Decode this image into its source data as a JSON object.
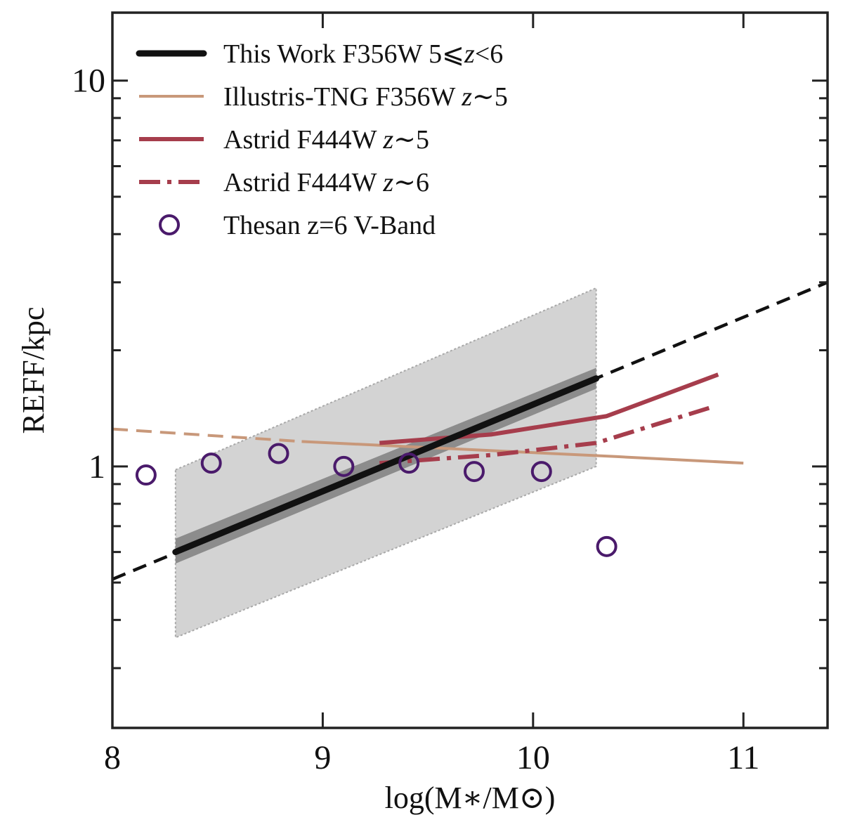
{
  "chart_data": {
    "type": "line",
    "title": "",
    "xlabel": "log(M∗/M⊙)",
    "ylabel": "REFF/kpc",
    "xlim": [
      8.0,
      11.4
    ],
    "ylim": [
      0.21,
      15.0
    ],
    "yscale": "log",
    "grid": false,
    "legend_position": "top-left",
    "xticks": [
      {
        "value": 8,
        "label": "8"
      },
      {
        "value": 9,
        "label": "9"
      },
      {
        "value": 10,
        "label": "10"
      },
      {
        "value": 11,
        "label": "11"
      }
    ],
    "yticks": [
      {
        "value": 1,
        "label": "1"
      },
      {
        "value": 10,
        "label": "10"
      }
    ],
    "band_outer": {
      "x": [
        8.3,
        10.3
      ],
      "lower": [
        0.36,
        1.0
      ],
      "upper": [
        0.98,
        2.9
      ]
    },
    "band_inner": {
      "x": [
        8.3,
        10.3
      ],
      "lower": [
        0.56,
        1.59
      ],
      "upper": [
        0.65,
        1.8
      ]
    },
    "series": [
      {
        "name": "This Work F356W 5⩽z<6",
        "legend_text": "This Work F356W 5⩽",
        "legend_italic": "z",
        "legend_tail": "<6",
        "color": "#111111",
        "solid": {
          "x": [
            8.3,
            10.3
          ],
          "y": [
            0.6,
            1.69
          ]
        },
        "extrapolation": {
          "x": [
            8.0,
            11.4
          ],
          "y": [
            0.51,
            3.0
          ]
        }
      },
      {
        "name": "Illustris-TNG F356W z∼5",
        "legend_text": "Illustris-TNG F356W ",
        "legend_italic": "z",
        "legend_tail": "∼5",
        "color": "#c8987a",
        "x": [
          8.9,
          10.4,
          11.0
        ],
        "y": [
          1.16,
          1.06,
          1.02
        ],
        "dashed": {
          "x": [
            8.0,
            8.9
          ],
          "y": [
            1.25,
            1.16
          ]
        }
      },
      {
        "name": "Astrid F444W z∼5",
        "legend_text": "Astrid F444W ",
        "legend_italic": "z",
        "legend_tail": "∼5",
        "color": "#a63d4c",
        "x": [
          9.27,
          9.8,
          10.35,
          10.88
        ],
        "y": [
          1.15,
          1.21,
          1.35,
          1.73
        ]
      },
      {
        "name": "Astrid F444W z∼6",
        "legend_text": "Astrid F444W ",
        "legend_italic": "z",
        "legend_tail": "∼6",
        "color": "#a63d4c",
        "x": [
          9.27,
          9.8,
          10.3,
          10.86
        ],
        "y": [
          1.02,
          1.07,
          1.15,
          1.43
        ]
      },
      {
        "name": "Thesan z=6 V-Band",
        "legend_text": "Thesan z=6 V-Band",
        "color": "#4a1a6b",
        "x": [
          8.16,
          8.47,
          8.79,
          9.1,
          9.41,
          9.72,
          10.04,
          10.35
        ],
        "y": [
          0.95,
          1.02,
          1.08,
          1.0,
          1.02,
          0.97,
          0.97,
          0.62
        ]
      }
    ]
  }
}
